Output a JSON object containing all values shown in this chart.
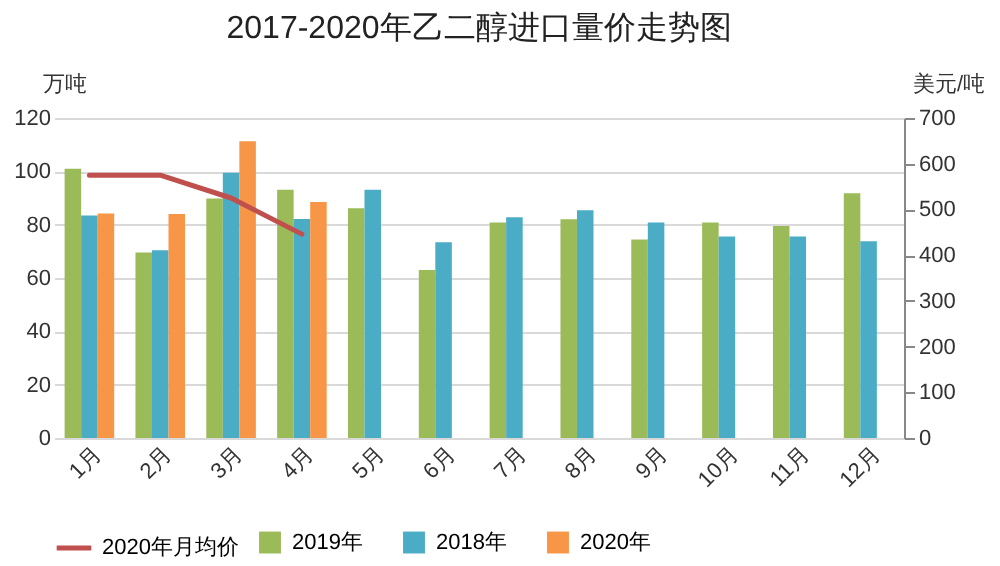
{
  "chart_data": {
    "type": "bar",
    "title": "2017-2020年乙二醇进口量价走势图",
    "ylabel": "万吨",
    "y2label": "美元/吨",
    "categories": [
      "1月",
      "2月",
      "3月",
      "4月",
      "5月",
      "6月",
      "7月",
      "8月",
      "9月",
      "10月",
      "11月",
      "12月"
    ],
    "series": [
      {
        "name": "2019年",
        "color": "#9bbb59",
        "values": [
          101,
          69.6,
          89.8,
          93.1,
          86.2,
          63,
          80.8,
          82,
          74.4,
          80.8,
          79.5,
          91.8
        ]
      },
      {
        "name": "2018年",
        "color": "#4bacc6",
        "values": [
          83.4,
          70.4,
          99.5,
          82.1,
          93.1,
          73.4,
          82.8,
          85.4,
          80.8,
          75.6,
          75.6,
          73.8
        ]
      },
      {
        "name": "2020年",
        "color": "#f79646",
        "values": [
          84.2,
          84,
          111.3,
          88.5,
          null,
          null,
          null,
          null,
          null,
          null,
          null,
          null
        ]
      },
      {
        "name": "2020年月均价",
        "color": "#c0504d",
        "type": "line",
        "axis": "y2",
        "values": [
          575,
          575,
          525,
          446,
          null,
          null,
          null,
          null,
          null,
          null,
          null,
          null
        ]
      }
    ],
    "ylim": [
      0,
      120
    ],
    "yticks": [
      0,
      20,
      40,
      60,
      80,
      100,
      120
    ],
    "y2lim": [
      0,
      700
    ],
    "y2ticks": [
      0,
      100,
      200,
      300,
      400,
      500,
      600,
      700
    ],
    "grid": "y",
    "legend": "bottom"
  }
}
